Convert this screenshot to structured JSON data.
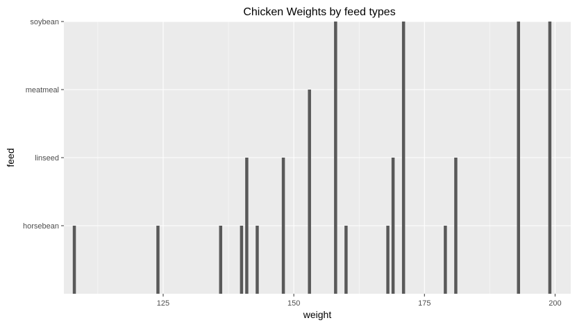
{
  "chart_data": {
    "type": "bar",
    "title": "Chicken Weights by feed types",
    "xlabel": "weight",
    "ylabel": "feed",
    "categories": [
      "horsebean",
      "linseed",
      "meatmeal",
      "soybean"
    ],
    "xlim": [
      106,
      203
    ],
    "ylim": [
      0,
      4
    ],
    "x_ticks": [
      125,
      150,
      175,
      200
    ],
    "x_tick_labels": [
      "125",
      "150",
      "175",
      "200"
    ],
    "grid": true,
    "legend": "none",
    "points": [
      {
        "weight": 108,
        "level": 1
      },
      {
        "weight": 124,
        "level": 1
      },
      {
        "weight": 136,
        "level": 1
      },
      {
        "weight": 140,
        "level": 1
      },
      {
        "weight": 141,
        "level": 2
      },
      {
        "weight": 143,
        "level": 1
      },
      {
        "weight": 148,
        "level": 2
      },
      {
        "weight": 153,
        "level": 3
      },
      {
        "weight": 158,
        "level": 4
      },
      {
        "weight": 160,
        "level": 1
      },
      {
        "weight": 168,
        "level": 1
      },
      {
        "weight": 169,
        "level": 2
      },
      {
        "weight": 171,
        "level": 4
      },
      {
        "weight": 179,
        "level": 1
      },
      {
        "weight": 181,
        "level": 2
      },
      {
        "weight": 193,
        "level": 4
      },
      {
        "weight": 199,
        "level": 4
      }
    ],
    "colors": {
      "panel": "#ebebeb",
      "grid_major": "#ffffff",
      "bar": "#595959",
      "tick": "#333333"
    }
  }
}
